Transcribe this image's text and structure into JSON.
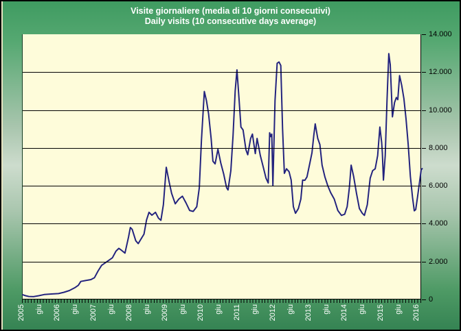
{
  "chart_data": {
    "type": "line",
    "title": "Visite giornaliere (media di 10 giorni consecutivi)",
    "subtitle": "Daily visits (10 consecutive days average)",
    "xlabel": "",
    "ylabel": "",
    "legend": "none",
    "grid": "horizontal",
    "xlim": [
      2005.0,
      2016.12
    ],
    "ylim": [
      0,
      14000
    ],
    "y_ticks": {
      "values": [
        0,
        2000,
        4000,
        6000,
        8000,
        10000,
        12000,
        14000
      ],
      "labels": [
        "0",
        "2.000",
        "4.000",
        "6.000",
        "8.000",
        "10.000",
        "12.000",
        "14.000"
      ]
    },
    "x_ticks": [
      {
        "t": 2005.0,
        "label": "2005"
      },
      {
        "t": 2005.5,
        "label": "giu"
      },
      {
        "t": 2006.0,
        "label": "2006"
      },
      {
        "t": 2006.5,
        "label": "giu"
      },
      {
        "t": 2007.0,
        "label": "2007"
      },
      {
        "t": 2007.5,
        "label": "giu"
      },
      {
        "t": 2008.0,
        "label": "2008"
      },
      {
        "t": 2008.5,
        "label": "giu"
      },
      {
        "t": 2009.0,
        "label": "2009"
      },
      {
        "t": 2009.5,
        "label": "giu"
      },
      {
        "t": 2010.0,
        "label": "2010"
      },
      {
        "t": 2010.5,
        "label": "giu"
      },
      {
        "t": 2011.0,
        "label": "2011"
      },
      {
        "t": 2011.5,
        "label": "giu"
      },
      {
        "t": 2012.0,
        "label": "2012"
      },
      {
        "t": 2012.5,
        "label": "giu"
      },
      {
        "t": 2013.0,
        "label": "2013"
      },
      {
        "t": 2013.5,
        "label": "giu"
      },
      {
        "t": 2014.0,
        "label": "2014"
      },
      {
        "t": 2014.5,
        "label": "giu"
      },
      {
        "t": 2015.0,
        "label": "2015"
      },
      {
        "t": 2015.5,
        "label": "giu"
      },
      {
        "t": 2016.0,
        "label": "2016"
      }
    ],
    "series": [
      {
        "name": "Visite giornaliere (media di 10 giorni consecutivi)",
        "color": "#23237e",
        "x": [
          2005.0,
          2005.08,
          2005.17,
          2005.3,
          2005.45,
          2005.6,
          2005.8,
          2006.0,
          2006.15,
          2006.3,
          2006.45,
          2006.55,
          2006.62,
          2006.75,
          2006.9,
          2007.0,
          2007.1,
          2007.2,
          2007.35,
          2007.5,
          2007.6,
          2007.68,
          2007.75,
          2007.85,
          2007.95,
          2008.0,
          2008.05,
          2008.15,
          2008.22,
          2008.3,
          2008.38,
          2008.45,
          2008.52,
          2008.6,
          2008.7,
          2008.78,
          2008.85,
          2008.92,
          2009.0,
          2009.08,
          2009.15,
          2009.25,
          2009.35,
          2009.45,
          2009.55,
          2009.65,
          2009.75,
          2009.85,
          2009.92,
          2009.98,
          2010.06,
          2010.12,
          2010.18,
          2010.25,
          2010.3,
          2010.36,
          2010.44,
          2010.52,
          2010.6,
          2010.68,
          2010.72,
          2010.8,
          2010.86,
          2010.92,
          2010.97,
          2011.03,
          2011.08,
          2011.14,
          2011.22,
          2011.27,
          2011.35,
          2011.4,
          2011.48,
          2011.53,
          2011.62,
          2011.7,
          2011.78,
          2011.84,
          2011.88,
          2011.91,
          2011.94,
          2011.97,
          2012.03,
          2012.09,
          2012.14,
          2012.19,
          2012.24,
          2012.29,
          2012.35,
          2012.42,
          2012.48,
          2012.54,
          2012.6,
          2012.68,
          2012.75,
          2012.8,
          2012.86,
          2012.92,
          2013.0,
          2013.06,
          2013.11,
          2013.15,
          2013.22,
          2013.28,
          2013.34,
          2013.42,
          2013.5,
          2013.58,
          2013.68,
          2013.78,
          2013.88,
          2013.97,
          2014.04,
          2014.1,
          2014.15,
          2014.22,
          2014.3,
          2014.38,
          2014.46,
          2014.52,
          2014.6,
          2014.68,
          2014.75,
          2014.82,
          2014.89,
          2014.95,
          2015.0,
          2015.02,
          2015.05,
          2015.1,
          2015.15,
          2015.2,
          2015.24,
          2015.3,
          2015.36,
          2015.41,
          2015.45,
          2015.5,
          2015.56,
          2015.62,
          2015.68,
          2015.74,
          2015.8,
          2015.86,
          2015.91,
          2015.95,
          2016.0,
          2016.05,
          2016.1,
          2016.13
        ],
        "y": [
          250,
          200,
          160,
          150,
          200,
          260,
          290,
          310,
          380,
          470,
          620,
          750,
          950,
          1000,
          1050,
          1150,
          1500,
          1800,
          2000,
          2200,
          2550,
          2700,
          2600,
          2450,
          3300,
          3800,
          3700,
          3100,
          2950,
          3200,
          3450,
          4200,
          4600,
          4450,
          4600,
          4300,
          4180,
          5000,
          6980,
          6200,
          5600,
          5050,
          5300,
          5450,
          5100,
          4700,
          4650,
          4900,
          5900,
          8400,
          10980,
          10500,
          9800,
          8500,
          7300,
          7160,
          7930,
          7200,
          6620,
          5900,
          5780,
          6800,
          8650,
          11000,
          12120,
          10500,
          9100,
          8950,
          7900,
          7640,
          8500,
          8730,
          7700,
          8500,
          7600,
          7000,
          6400,
          6150,
          8800,
          8600,
          8730,
          6000,
          10500,
          12470,
          12540,
          12350,
          9000,
          6660,
          6900,
          6750,
          6300,
          4900,
          4550,
          4800,
          5300,
          6300,
          6290,
          6470,
          7200,
          7750,
          8650,
          9270,
          8500,
          8180,
          7090,
          6470,
          6000,
          5640,
          5300,
          4700,
          4440,
          4500,
          4900,
          5900,
          7090,
          6500,
          5600,
          4800,
          4550,
          4440,
          5000,
          6400,
          6800,
          6900,
          7600,
          9100,
          8300,
          7750,
          6300,
          7600,
          10500,
          12980,
          12400,
          9640,
          10400,
          10660,
          10550,
          11820,
          11300,
          10600,
          9530,
          8200,
          6500,
          5400,
          4680,
          4750,
          5400,
          6100,
          6840,
          6910
        ]
      }
    ]
  },
  "colors": {
    "frame_green_top": "#3f9b61",
    "frame_green_mid": "#cddccd",
    "frame_green_bottom": "#358353",
    "plot_background": "#fefcda",
    "line": "#23237e",
    "gridline": "#000000",
    "title_text": "#ffffff",
    "x_tick_text": "#ffffff",
    "y_tick_text": "#000000"
  }
}
